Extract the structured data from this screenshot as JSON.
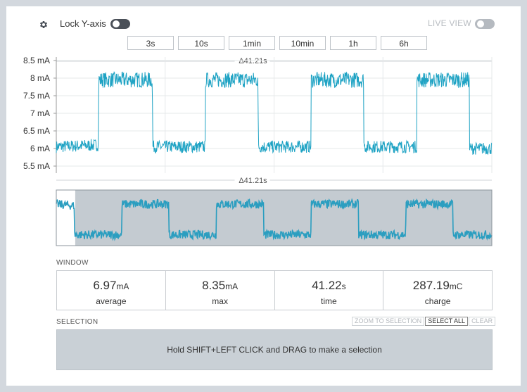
{
  "toolbar": {
    "lock_label": "Lock Y-axis",
    "live_label": "LIVE VIEW",
    "zoom_buttons": [
      "3s",
      "10s",
      "1min",
      "10min",
      "1h",
      "6h"
    ]
  },
  "chart_data": {
    "type": "line",
    "title": "",
    "xlabel": "",
    "ylabel": "",
    "y_tick_labels": [
      "8.5 mA",
      "8 mA",
      "7.5 mA",
      "7 mA",
      "6.5 mA",
      "6 mA",
      "5.5 mA"
    ],
    "y_ticks": [
      8.5,
      8.0,
      7.5,
      7.0,
      6.5,
      6.0,
      5.5
    ],
    "ylim": [
      5.3,
      8.6
    ],
    "x_range_s": [
      0,
      41.21
    ],
    "top_marker": "Δ41.21s",
    "bottom_marker": "Δ41.21s",
    "grid": true,
    "series": [
      {
        "color": "#1fa3c4",
        "x": [
          0,
          4.0,
          4.01,
          9.1,
          9.11,
          14.1,
          14.11,
          19.1,
          19.11,
          24.1,
          24.11,
          29.1,
          29.11,
          34.1,
          34.11,
          39.1,
          39.11,
          41.21
        ],
        "y": [
          6.05,
          6.1,
          7.95,
          7.95,
          6.05,
          6.05,
          7.95,
          7.95,
          6.05,
          6.05,
          7.95,
          7.95,
          6.05,
          6.05,
          7.95,
          7.95,
          6.0,
          6.0
        ]
      }
    ],
    "overview": {
      "x_range_s": [
        0,
        46.0
      ],
      "selection_start_s": 2.0,
      "x": [
        0,
        1.9,
        1.91,
        6.9,
        6.91,
        11.9,
        11.91,
        16.9,
        16.91,
        21.9,
        21.91,
        26.9,
        26.91,
        31.9,
        31.91,
        36.9,
        36.91,
        41.9,
        41.91,
        46.0
      ],
      "y": [
        7.9,
        7.8,
        6.0,
        6.0,
        7.9,
        7.9,
        6.0,
        6.0,
        7.9,
        7.9,
        6.0,
        6.0,
        7.9,
        7.9,
        6.0,
        6.0,
        7.9,
        7.9,
        6.0,
        6.0
      ]
    }
  },
  "window": {
    "label": "WINDOW",
    "stats": [
      {
        "value": "6.97",
        "unit": "mA",
        "label": "average"
      },
      {
        "value": "8.35",
        "unit": "mA",
        "label": "max"
      },
      {
        "value": "41.22",
        "unit": "s",
        "label": "time"
      },
      {
        "value": "287.19",
        "unit": "mC",
        "label": "charge"
      }
    ]
  },
  "selection": {
    "label": "SELECTION",
    "zoom_to_selection": "ZOOM TO SELECTION",
    "select_all": "SELECT ALL",
    "clear": "CLEAR",
    "hint": "Hold SHIFT+LEFT CLICK and DRAG to make a selection"
  },
  "colors": {
    "trace": "#1fa3c4",
    "overview_trace": "#2b9ec0",
    "overview_bg": "#c4cbd1",
    "grid": "#e6e8ea"
  }
}
